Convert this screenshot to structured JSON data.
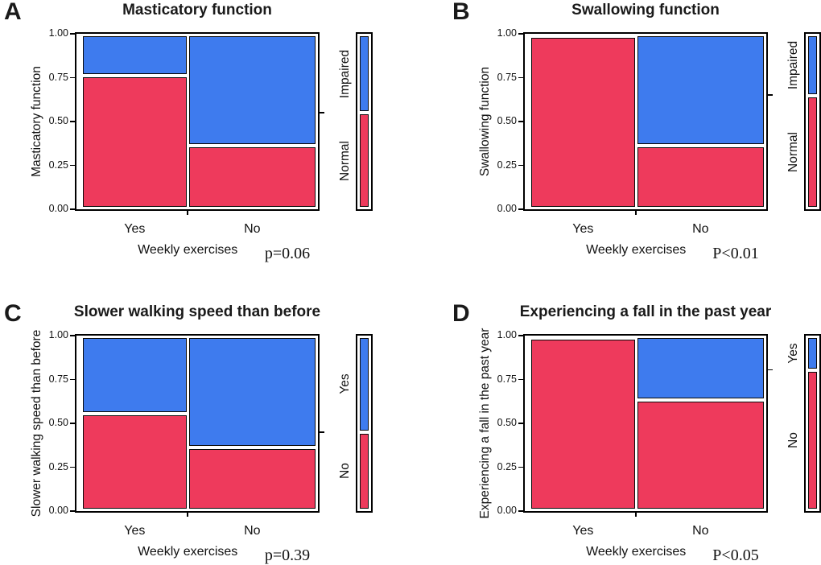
{
  "colors": {
    "impaired_or_yes_blue": "#3e7bee",
    "normal_or_no_red": "#ee3a5c",
    "frame_black": "#000000",
    "background": "#ffffff"
  },
  "chart_data": [
    {
      "type": "bar",
      "variant": "mosaic",
      "panel_letter": "A",
      "title": "Masticatory function",
      "xlabel": "Weekly exercises",
      "ylabel": "Masticatory function",
      "categories": [
        "Yes",
        "No"
      ],
      "category_width_fractions": [
        0.45,
        0.55
      ],
      "yticks": [
        "1.00",
        "0.75",
        "0.50",
        "0.25",
        "0.00"
      ],
      "ylim": [
        0,
        1
      ],
      "grid": false,
      "legend_position": "right",
      "series": [
        {
          "name": "Impaired",
          "color": "#3e7bee",
          "values": [
            0.23,
            0.64
          ]
        },
        {
          "name": "Normal",
          "color": "#ee3a5c",
          "values": [
            0.77,
            0.36
          ]
        }
      ],
      "legend": {
        "top": "Impaired",
        "bottom": "Normal",
        "top_fraction": 0.45,
        "bottom_fraction": 0.55
      },
      "right_axis_tick_fraction": 0.55,
      "p_label": "p=0.06"
    },
    {
      "type": "bar",
      "variant": "mosaic",
      "panel_letter": "B",
      "title": "Swallowing function",
      "xlabel": "Weekly exercises",
      "ylabel": "Swallowing function",
      "categories": [
        "Yes",
        "No"
      ],
      "category_width_fractions": [
        0.45,
        0.55
      ],
      "yticks": [
        "1.00",
        "0.75",
        "0.50",
        "0.25",
        "0.00"
      ],
      "ylim": [
        0,
        1
      ],
      "grid": false,
      "legend_position": "right",
      "series": [
        {
          "name": "Impaired",
          "color": "#3e7bee",
          "values": [
            0.0,
            0.64
          ]
        },
        {
          "name": "Normal",
          "color": "#ee3a5c",
          "values": [
            1.0,
            0.36
          ]
        }
      ],
      "legend": {
        "top": "Impaired",
        "bottom": "Normal",
        "top_fraction": 0.35,
        "bottom_fraction": 0.65
      },
      "right_axis_tick_fraction": 0.65,
      "p_label": "P<0.01"
    },
    {
      "type": "bar",
      "variant": "mosaic",
      "panel_letter": "C",
      "title": "Slower walking speed than before",
      "xlabel": "Weekly exercises",
      "ylabel": "Slower walking speed than before",
      "categories": [
        "Yes",
        "No"
      ],
      "category_width_fractions": [
        0.45,
        0.55
      ],
      "yticks": [
        "1.00",
        "0.75",
        "0.50",
        "0.25",
        "0.00"
      ],
      "ylim": [
        0,
        1
      ],
      "grid": false,
      "legend_position": "right",
      "series": [
        {
          "name": "Yes",
          "color": "#3e7bee",
          "values": [
            0.445,
            0.64
          ]
        },
        {
          "name": "No",
          "color": "#ee3a5c",
          "values": [
            0.555,
            0.36
          ]
        }
      ],
      "legend": {
        "top": "Yes",
        "bottom": "No",
        "top_fraction": 0.55,
        "bottom_fraction": 0.45
      },
      "right_axis_tick_fraction": 0.45,
      "p_label": "p=0.39"
    },
    {
      "type": "bar",
      "variant": "mosaic",
      "panel_letter": "D",
      "title": "Experiencing a fall in the past year",
      "xlabel": "Weekly exercises",
      "ylabel": "Experiencing a fall in the past year",
      "categories": [
        "Yes",
        "No"
      ],
      "category_width_fractions": [
        0.45,
        0.55
      ],
      "yticks": [
        "1.00",
        "0.75",
        "0.50",
        "0.25",
        "0.00"
      ],
      "ylim": [
        0,
        1
      ],
      "grid": false,
      "legend_position": "right",
      "series": [
        {
          "name": "Yes",
          "color": "#3e7bee",
          "values": [
            0.0,
            0.365
          ]
        },
        {
          "name": "No",
          "color": "#ee3a5c",
          "values": [
            1.0,
            0.635
          ]
        }
      ],
      "legend": {
        "top": "Yes",
        "bottom": "No",
        "top_fraction": 0.19,
        "bottom_fraction": 0.81
      },
      "right_axis_tick_fraction": 0.805,
      "p_label": "P<0.05"
    }
  ]
}
